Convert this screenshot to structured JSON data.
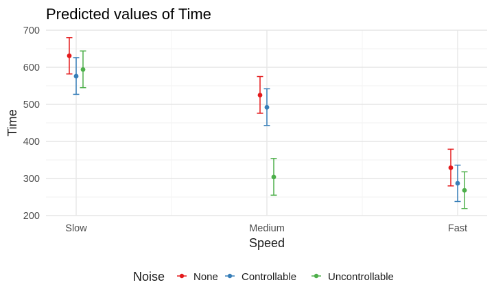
{
  "chart_data": {
    "type": "scatter",
    "title": "Predicted values of Time",
    "xlabel": "Speed",
    "ylabel": "Time",
    "categories": [
      "Slow",
      "Medium",
      "Fast"
    ],
    "ylim": [
      200,
      700
    ],
    "yticks": [
      200,
      300,
      400,
      500,
      600,
      700
    ],
    "grid": true,
    "legend": {
      "title": "Noise",
      "position": "bottom"
    },
    "series": [
      {
        "name": "None",
        "color": "#e41a1c",
        "values": [
          631,
          525,
          329
        ],
        "lower": [
          582,
          476,
          280
        ],
        "upper": [
          680,
          575,
          379
        ]
      },
      {
        "name": "Controllable",
        "color": "#377eb8",
        "values": [
          576,
          492,
          287
        ],
        "lower": [
          527,
          443,
          238
        ],
        "upper": [
          626,
          542,
          336
        ]
      },
      {
        "name": "Uncontrollable",
        "color": "#4daf4a",
        "values": [
          594,
          304,
          268
        ],
        "lower": [
          545,
          255,
          219
        ],
        "upper": [
          644,
          354,
          318
        ]
      }
    ]
  }
}
